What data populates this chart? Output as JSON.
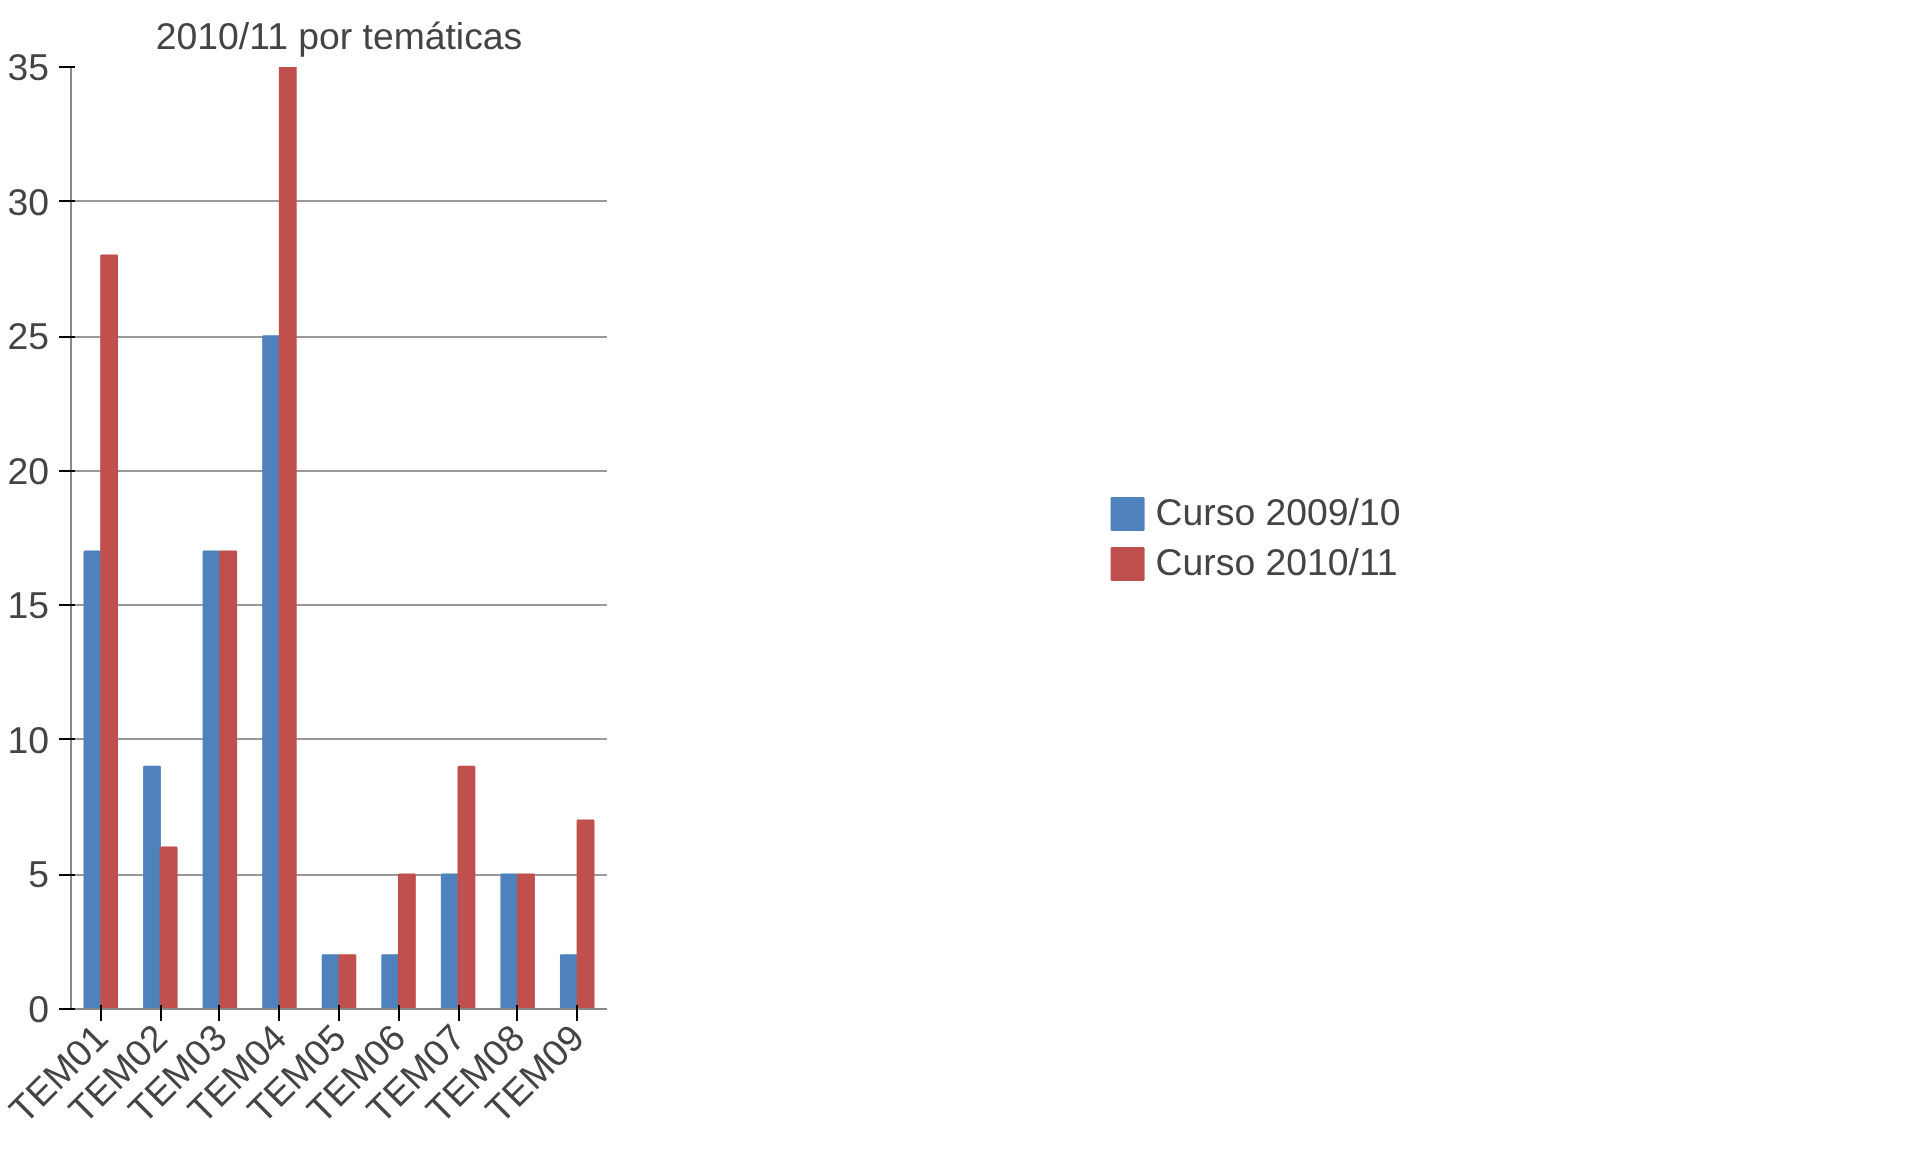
{
  "chart_data": {
    "type": "bar",
    "title": "2010/11 por temáticas",
    "categories": [
      "TEM01",
      "TEM02",
      "TEM03",
      "TEM04",
      "TEM05",
      "TEM06",
      "TEM07",
      "TEM08",
      "TEM09"
    ],
    "series": [
      {
        "name": "Curso 2009/10",
        "color": "#4f81bd",
        "values": [
          17,
          9,
          17,
          25,
          2,
          2,
          5,
          5,
          2
        ]
      },
      {
        "name": "Curso 2010/11",
        "color": "#c0504d",
        "values": [
          28,
          6,
          17,
          35,
          2,
          5,
          9,
          5,
          7
        ]
      }
    ],
    "ylim": [
      0,
      35
    ],
    "yticks": [
      0,
      5,
      10,
      15,
      20,
      25,
      30,
      35
    ],
    "grid": "y",
    "legend": "right"
  }
}
